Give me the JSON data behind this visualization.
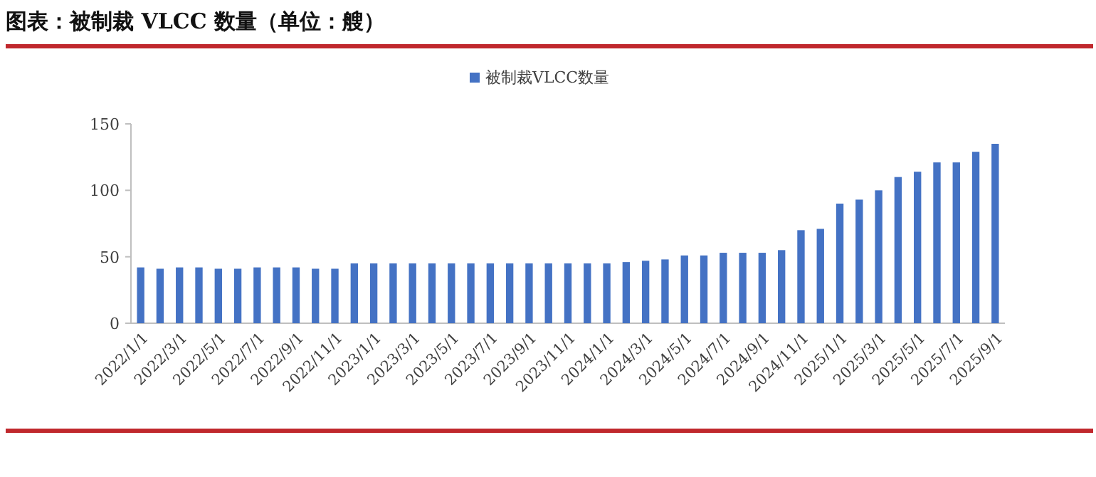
{
  "chart_data": {
    "type": "bar",
    "title": "图表：被制裁 VLCC 数量（单位：艘）",
    "categories": [
      "2022/1/1",
      null,
      "2022/3/1",
      null,
      "2022/5/1",
      null,
      "2022/7/1",
      null,
      "2022/9/1",
      null,
      "2022/11/1",
      null,
      "2023/1/1",
      null,
      "2023/3/1",
      null,
      "2023/5/1",
      null,
      "2023/7/1",
      null,
      "2023/9/1",
      null,
      "2023/11/1",
      null,
      "2024/1/1",
      null,
      "2024/3/1",
      null,
      "2024/5/1",
      null,
      "2024/7/1",
      null,
      "2024/9/1",
      null,
      "2024/11/1",
      null,
      "2025/1/1",
      null,
      "2025/3/1",
      null,
      "2025/5/1",
      null,
      "2025/7/1",
      null,
      "2025/9/1"
    ],
    "series": [
      {
        "name": "被制裁VLCC数量",
        "color": "#4472c4",
        "values": [
          42,
          41,
          42,
          42,
          41,
          41,
          42,
          42,
          42,
          41,
          41,
          45,
          45,
          45,
          45,
          45,
          45,
          45,
          45,
          45,
          45,
          45,
          45,
          45,
          45,
          46,
          47,
          48,
          51,
          51,
          53,
          53,
          53,
          55,
          70,
          71,
          90,
          93,
          100,
          110,
          114,
          121,
          121,
          129,
          135
        ]
      }
    ],
    "ylim": [
      0,
      150
    ],
    "yticks": [
      0,
      50,
      100,
      150
    ],
    "legend": "top",
    "grid": false
  }
}
